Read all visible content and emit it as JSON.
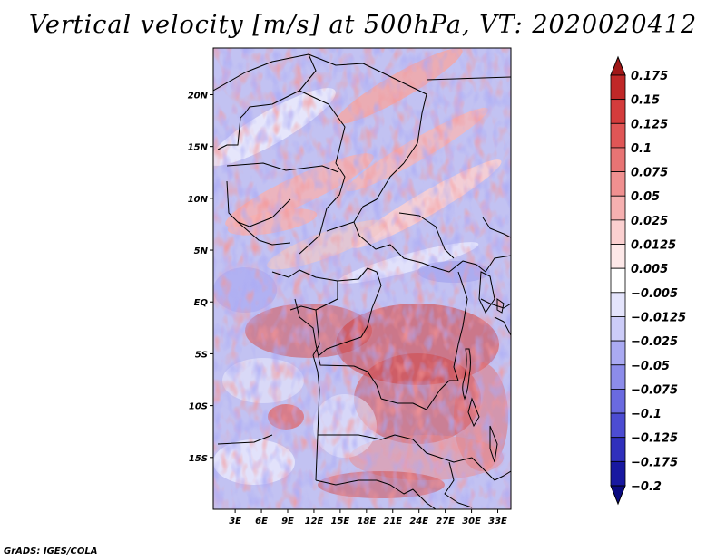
{
  "map": {
    "title": "Vertical velocity [m/s] at 500hPa, VT: 2020020412",
    "footer": "GrADS: IGES/COLA",
    "lat_labels": [
      "20N",
      "15N",
      "10N",
      "5N",
      "EQ",
      "5S",
      "10S",
      "15S"
    ],
    "lat_values": [
      20,
      15,
      10,
      5,
      0,
      -5,
      -10,
      -15
    ],
    "lon_labels": [
      "3E",
      "6E",
      "9E",
      "12E",
      "15E",
      "18E",
      "21E",
      "24E",
      "27E",
      "30E",
      "33E"
    ],
    "lon_values": [
      3,
      6,
      9,
      12,
      15,
      18,
      21,
      24,
      27,
      30,
      33
    ],
    "lat_range": [
      -20,
      24.5
    ],
    "lon_range": [
      0.5,
      34.5
    ],
    "variable": "vertical velocity",
    "units": "m/s",
    "level": "500hPa"
  },
  "colorbar": {
    "labels": [
      "0.175",
      "0.15",
      "0.125",
      "0.1",
      "0.075",
      "0.05",
      "0.025",
      "0.0125",
      "0.005",
      "−0.005",
      "−0.0125",
      "−0.025",
      "−0.05",
      "−0.075",
      "−0.1",
      "−0.125",
      "−0.175",
      "−0.2"
    ],
    "colors": [
      "#a01818",
      "#c02828",
      "#d43c3c",
      "#e05656",
      "#e87474",
      "#f09090",
      "#f6b0b0",
      "#fbd0d0",
      "#fde8e8",
      "#ffffff",
      "#e4e4fc",
      "#ccccf8",
      "#aaaaf2",
      "#8c8cea",
      "#6a6ae0",
      "#4c4cd2",
      "#3030bc",
      "#1818a0",
      "#0a0a80"
    ]
  },
  "colors": {
    "background": "#ffffff",
    "border": "#000000",
    "map_base": "#c2c2f2"
  }
}
